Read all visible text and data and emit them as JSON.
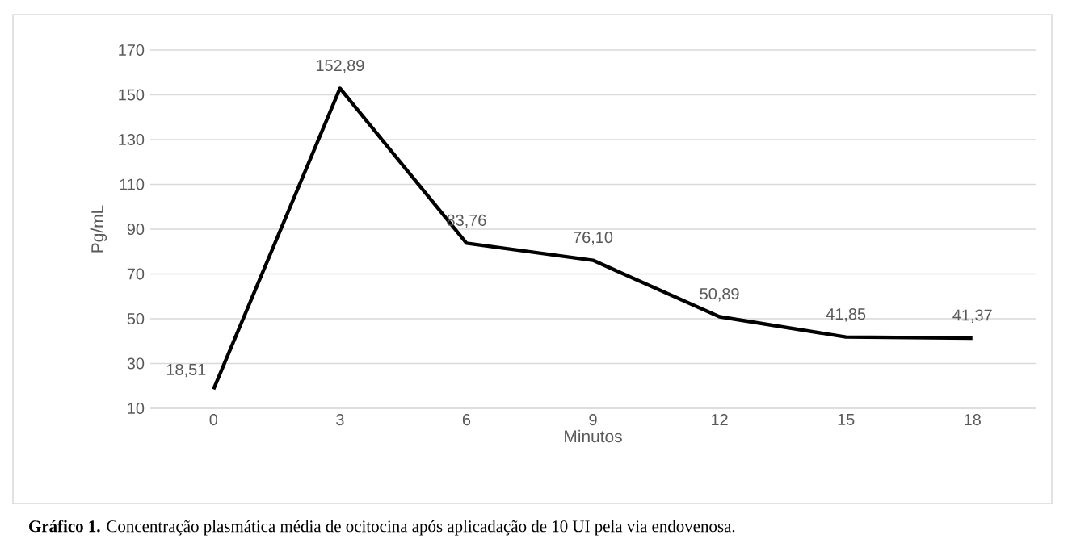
{
  "chart_data": {
    "type": "line",
    "xlabel": "Minutos",
    "ylabel": "Pg/mL",
    "categories": [
      "0",
      "3",
      "6",
      "9",
      "12",
      "15",
      "18"
    ],
    "values": [
      18.51,
      152.89,
      83.76,
      76.1,
      50.89,
      41.85,
      41.37
    ],
    "color": "#000000",
    "ylim": [
      10,
      170
    ],
    "yticks": [
      10,
      30,
      50,
      70,
      90,
      110,
      130,
      150,
      170
    ],
    "value_labels": [
      "18,51",
      "152,89",
      "83,76",
      "76,10",
      "50,89",
      "41,85",
      "41,37"
    ],
    "grid": "y",
    "marker": "none",
    "line_style": "solid",
    "annotations": [
      "**Gráfico 1.** Concentração plasmática média de ocitocina após aplicadação de 10 UI pela via endovenosa."
    ]
  }
}
